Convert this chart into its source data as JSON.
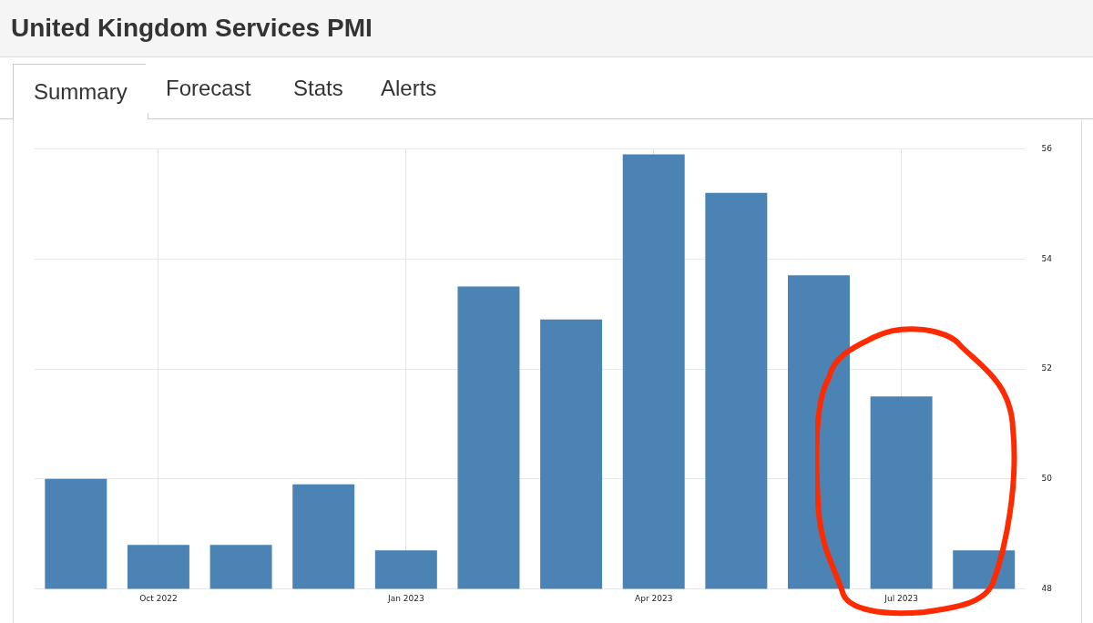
{
  "chart_data": {
    "type": "bar",
    "title": "United Kingdom Services PMI",
    "annotations": [
      "Summary",
      "Forecast",
      "Stats",
      "Alerts"
    ],
    "categories": [
      null,
      "Oct 2022",
      null,
      null,
      "Jan 2023",
      null,
      null,
      "Apr 2023",
      null,
      null,
      "Jul 2023",
      null
    ],
    "values": [
      50.0,
      48.8,
      48.8,
      49.9,
      48.7,
      53.5,
      52.9,
      55.9,
      55.2,
      53.7,
      51.5,
      48.7
    ],
    "color": "#4a83b4",
    "ylim": [
      48,
      56
    ],
    "yticks": [
      48,
      50,
      52,
      54,
      56
    ],
    "grid": true
  }
}
